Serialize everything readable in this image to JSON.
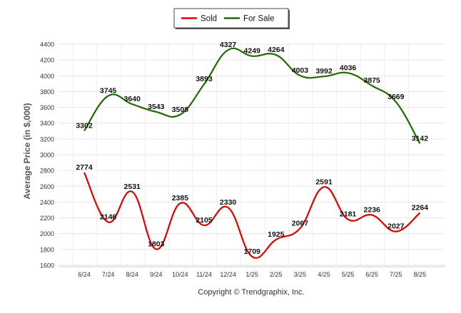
{
  "chart_data": {
    "type": "line",
    "title": "",
    "ylabel": "Average Price (in $,000)",
    "xlabel": "",
    "categories": [
      "6/24",
      "7/24",
      "8/24",
      "9/24",
      "10/24",
      "11/24",
      "12/24",
      "1/25",
      "2/25",
      "3/25",
      "4/25",
      "5/25",
      "6/25",
      "7/25",
      "8/25"
    ],
    "ylim": [
      1600,
      4400
    ],
    "yticks": [
      1600,
      1800,
      2000,
      2200,
      2400,
      2600,
      2800,
      3000,
      3200,
      3400,
      3600,
      3800,
      4000,
      4200,
      4400
    ],
    "grid": true,
    "legend_position": "top-center",
    "series": [
      {
        "name": "Sold",
        "color": "#e00000",
        "values": [
          2774,
          2146,
          2531,
          1803,
          2385,
          2105,
          2330,
          1709,
          1925,
          2067,
          2591,
          2181,
          2236,
          2027,
          2264
        ]
      },
      {
        "name": "For Sale",
        "color": "#1f6b00",
        "values": [
          3302,
          3745,
          3640,
          3543,
          3508,
          3893,
          4327,
          4249,
          4264,
          4003,
          3992,
          4036,
          3875,
          3669,
          3142
        ]
      }
    ],
    "footer": "Copyright © Trendgraphix, Inc."
  }
}
